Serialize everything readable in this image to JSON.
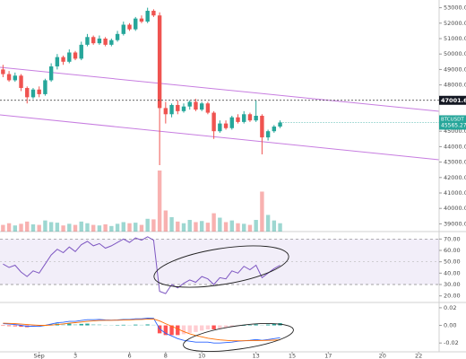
{
  "chart_data": [
    {
      "type": "candlestick",
      "symbol": "BTCUSDT",
      "open": [
        49000,
        48700,
        48300,
        48600,
        47800,
        47200,
        47700,
        47400,
        48300,
        49200,
        49800,
        49500,
        50100,
        49700,
        50600,
        51100,
        50700,
        51000,
        50600,
        50900,
        51300,
        51900,
        51600,
        52300,
        52100,
        52800,
        52500,
        46500,
        46100,
        46700,
        46300,
        46600,
        46900,
        46400,
        46800,
        46200,
        45000,
        45500,
        45200,
        45900,
        45600,
        46100,
        45700,
        46000,
        44600,
        45000,
        45300
      ],
      "high": [
        49300,
        48900,
        48800,
        48700,
        47900,
        47800,
        47900,
        48400,
        49400,
        50000,
        49900,
        50300,
        50200,
        50800,
        51300,
        51200,
        51200,
        51100,
        51000,
        51500,
        52100,
        52000,
        52400,
        52500,
        53000,
        52900,
        52700,
        46900,
        46800,
        47000,
        46800,
        47000,
        47100,
        46900,
        46900,
        46300,
        45700,
        45700,
        46000,
        46100,
        46300,
        46200,
        47000,
        46100,
        45100,
        45400,
        45700
      ],
      "low": [
        48500,
        48200,
        48200,
        47600,
        46800,
        47100,
        47200,
        47300,
        48200,
        49000,
        49300,
        49400,
        49600,
        49600,
        50500,
        50600,
        50600,
        50500,
        50500,
        50800,
        51200,
        51500,
        51500,
        52000,
        52000,
        52400,
        42800,
        45500,
        45900,
        46100,
        46200,
        46400,
        46300,
        46300,
        46100,
        44500,
        44900,
        45100,
        45100,
        45500,
        45500,
        45600,
        45600,
        43500,
        44400,
        44900,
        45200
      ],
      "close": [
        48700,
        48300,
        48600,
        47800,
        47200,
        47700,
        47400,
        48300,
        49200,
        49800,
        49500,
        50100,
        49700,
        50600,
        51100,
        50700,
        51000,
        50600,
        50900,
        51300,
        51900,
        51600,
        52300,
        52100,
        52800,
        52500,
        46500,
        46100,
        46700,
        46300,
        46600,
        46900,
        46400,
        46800,
        46200,
        45000,
        45500,
        45200,
        45900,
        45600,
        46100,
        45700,
        46000,
        44600,
        45000,
        45300,
        45565.27
      ],
      "volume": [
        120,
        150,
        110,
        140,
        180,
        130,
        120,
        200,
        170,
        160,
        110,
        140,
        120,
        180,
        150,
        120,
        110,
        130,
        100,
        140,
        170,
        150,
        160,
        120,
        230,
        220,
        1100,
        380,
        260,
        180,
        150,
        210,
        170,
        190,
        160,
        330,
        250,
        170,
        200,
        150,
        140,
        120,
        210,
        720,
        300,
        200,
        150
      ],
      "up_color": "#26a69a",
      "down_color": "#ef5350",
      "level": 47001.65,
      "xlim": [
        -0.5,
        72.4
      ],
      "ylim": [
        38500,
        53500
      ],
      "yticks": [
        {
          "value": 53000,
          "label": "53000.00"
        },
        {
          "value": 52000,
          "label": "52000.00"
        },
        {
          "value": 51000,
          "label": "51000.00"
        },
        {
          "value": 50000,
          "label": "50000.00"
        },
        {
          "value": 49000,
          "label": "49000.00"
        },
        {
          "value": 48000,
          "label": "48000.00"
        },
        {
          "value": 45000,
          "label": "45000.00"
        },
        {
          "value": 44000,
          "label": "44000.00"
        },
        {
          "value": 43000,
          "label": "43000.00"
        },
        {
          "value": 42000,
          "label": "42000.00"
        },
        {
          "value": 41000,
          "label": "41000.00"
        },
        {
          "value": 40000,
          "label": "40000.00"
        },
        {
          "value": 39000,
          "label": "39000.00"
        }
      ],
      "xticks": [
        {
          "value": 6,
          "label": "Sep"
        },
        {
          "value": 12,
          "label": "3"
        },
        {
          "value": 21,
          "label": "6"
        },
        {
          "value": 27,
          "label": "8"
        },
        {
          "value": 33,
          "label": "10"
        },
        {
          "value": 42,
          "label": "13"
        },
        {
          "value": 48,
          "label": "15"
        },
        {
          "value": 54,
          "label": "17"
        },
        {
          "value": 63,
          "label": "20"
        },
        {
          "value": 69,
          "label": "22"
        }
      ]
    },
    {
      "type": "line",
      "color": "#7e57c2",
      "values": [
        48,
        45,
        47,
        41,
        37,
        42,
        40,
        48,
        56,
        61,
        58,
        63,
        59,
        65,
        68,
        64,
        66,
        62,
        64,
        67,
        70,
        67,
        71,
        69,
        72,
        69,
        24,
        22,
        30,
        27,
        31,
        34,
        32,
        37,
        35,
        30,
        36,
        35,
        42,
        40,
        46,
        43,
        47,
        36,
        40,
        44,
        47
      ],
      "band": [
        30,
        70
      ],
      "ylim": [
        15,
        75
      ],
      "yticks": [
        {
          "value": 70,
          "label": "70.00"
        },
        {
          "value": 60,
          "label": "60.00"
        },
        {
          "value": 50,
          "label": "50.00"
        },
        {
          "value": 40,
          "label": "40.00"
        },
        {
          "value": 30,
          "label": "30.00"
        },
        {
          "value": 20,
          "label": "20.00"
        }
      ]
    },
    {
      "type": "macd",
      "histogram": [
        -0.0005,
        -0.0008,
        -0.001,
        -0.0015,
        -0.002,
        -0.0015,
        -0.0012,
        0.0,
        0.0011,
        0.002,
        0.0018,
        0.002,
        0.0014,
        0.0017,
        0.002,
        0.0015,
        0.0013,
        0.0005,
        0.0002,
        0.0003,
        0.0007,
        0.0005,
        0.0009,
        0.0007,
        0.0011,
        0.0007,
        -0.009,
        -0.011,
        -0.011,
        -0.011,
        -0.01,
        -0.0085,
        -0.0075,
        -0.006,
        -0.0045,
        -0.0045,
        -0.0035,
        -0.0025,
        -0.0015,
        -0.0005,
        0.0,
        0.0004,
        0.0012,
        0.0002,
        0.001,
        0.0018,
        0.0025
      ],
      "macd": [
        0.002,
        0.0015,
        0.001,
        0.0,
        -0.001,
        -0.001,
        -0.0012,
        0.0,
        0.0015,
        0.003,
        0.0035,
        0.0045,
        0.0045,
        0.0055,
        0.0065,
        0.0065,
        0.0068,
        0.0062,
        0.006,
        0.0062,
        0.0068,
        0.0068,
        0.0075,
        0.0075,
        0.0082,
        0.008,
        -0.004,
        -0.009,
        -0.012,
        -0.015,
        -0.017,
        -0.018,
        -0.019,
        -0.019,
        -0.019,
        -0.02,
        -0.02,
        -0.0195,
        -0.019,
        -0.018,
        -0.0175,
        -0.017,
        -0.016,
        -0.017,
        -0.016,
        -0.015,
        -0.014
      ],
      "signal": [
        0.0025,
        0.0023,
        0.002,
        0.0015,
        0.001,
        0.0005,
        0.0,
        0.0,
        0.0004,
        0.001,
        0.0017,
        0.0025,
        0.0031,
        0.0038,
        0.0045,
        0.005,
        0.0055,
        0.0057,
        0.0058,
        0.0059,
        0.0061,
        0.0063,
        0.0066,
        0.0068,
        0.0071,
        0.0073,
        0.005,
        0.002,
        -0.001,
        -0.004,
        -0.007,
        -0.0095,
        -0.0115,
        -0.013,
        -0.0145,
        -0.0155,
        -0.0165,
        -0.017,
        -0.0175,
        -0.0175,
        -0.0175,
        -0.0174,
        -0.0172,
        -0.0172,
        -0.017,
        -0.0168,
        -0.0165
      ],
      "macd_color": "#2962ff",
      "signal_color": "#ff6d00",
      "hist_colors": {
        "up_rising": "#26a69a",
        "up_falling": "#b2dfdb",
        "down_falling": "#ff5252",
        "down_rising": "#ffcdd2"
      },
      "ylim": [
        -0.03,
        0.025
      ],
      "yticks": [
        0.02,
        {
          "value": 0,
          "label": "0.00"
        },
        -0.02
      ]
    }
  ]
}
